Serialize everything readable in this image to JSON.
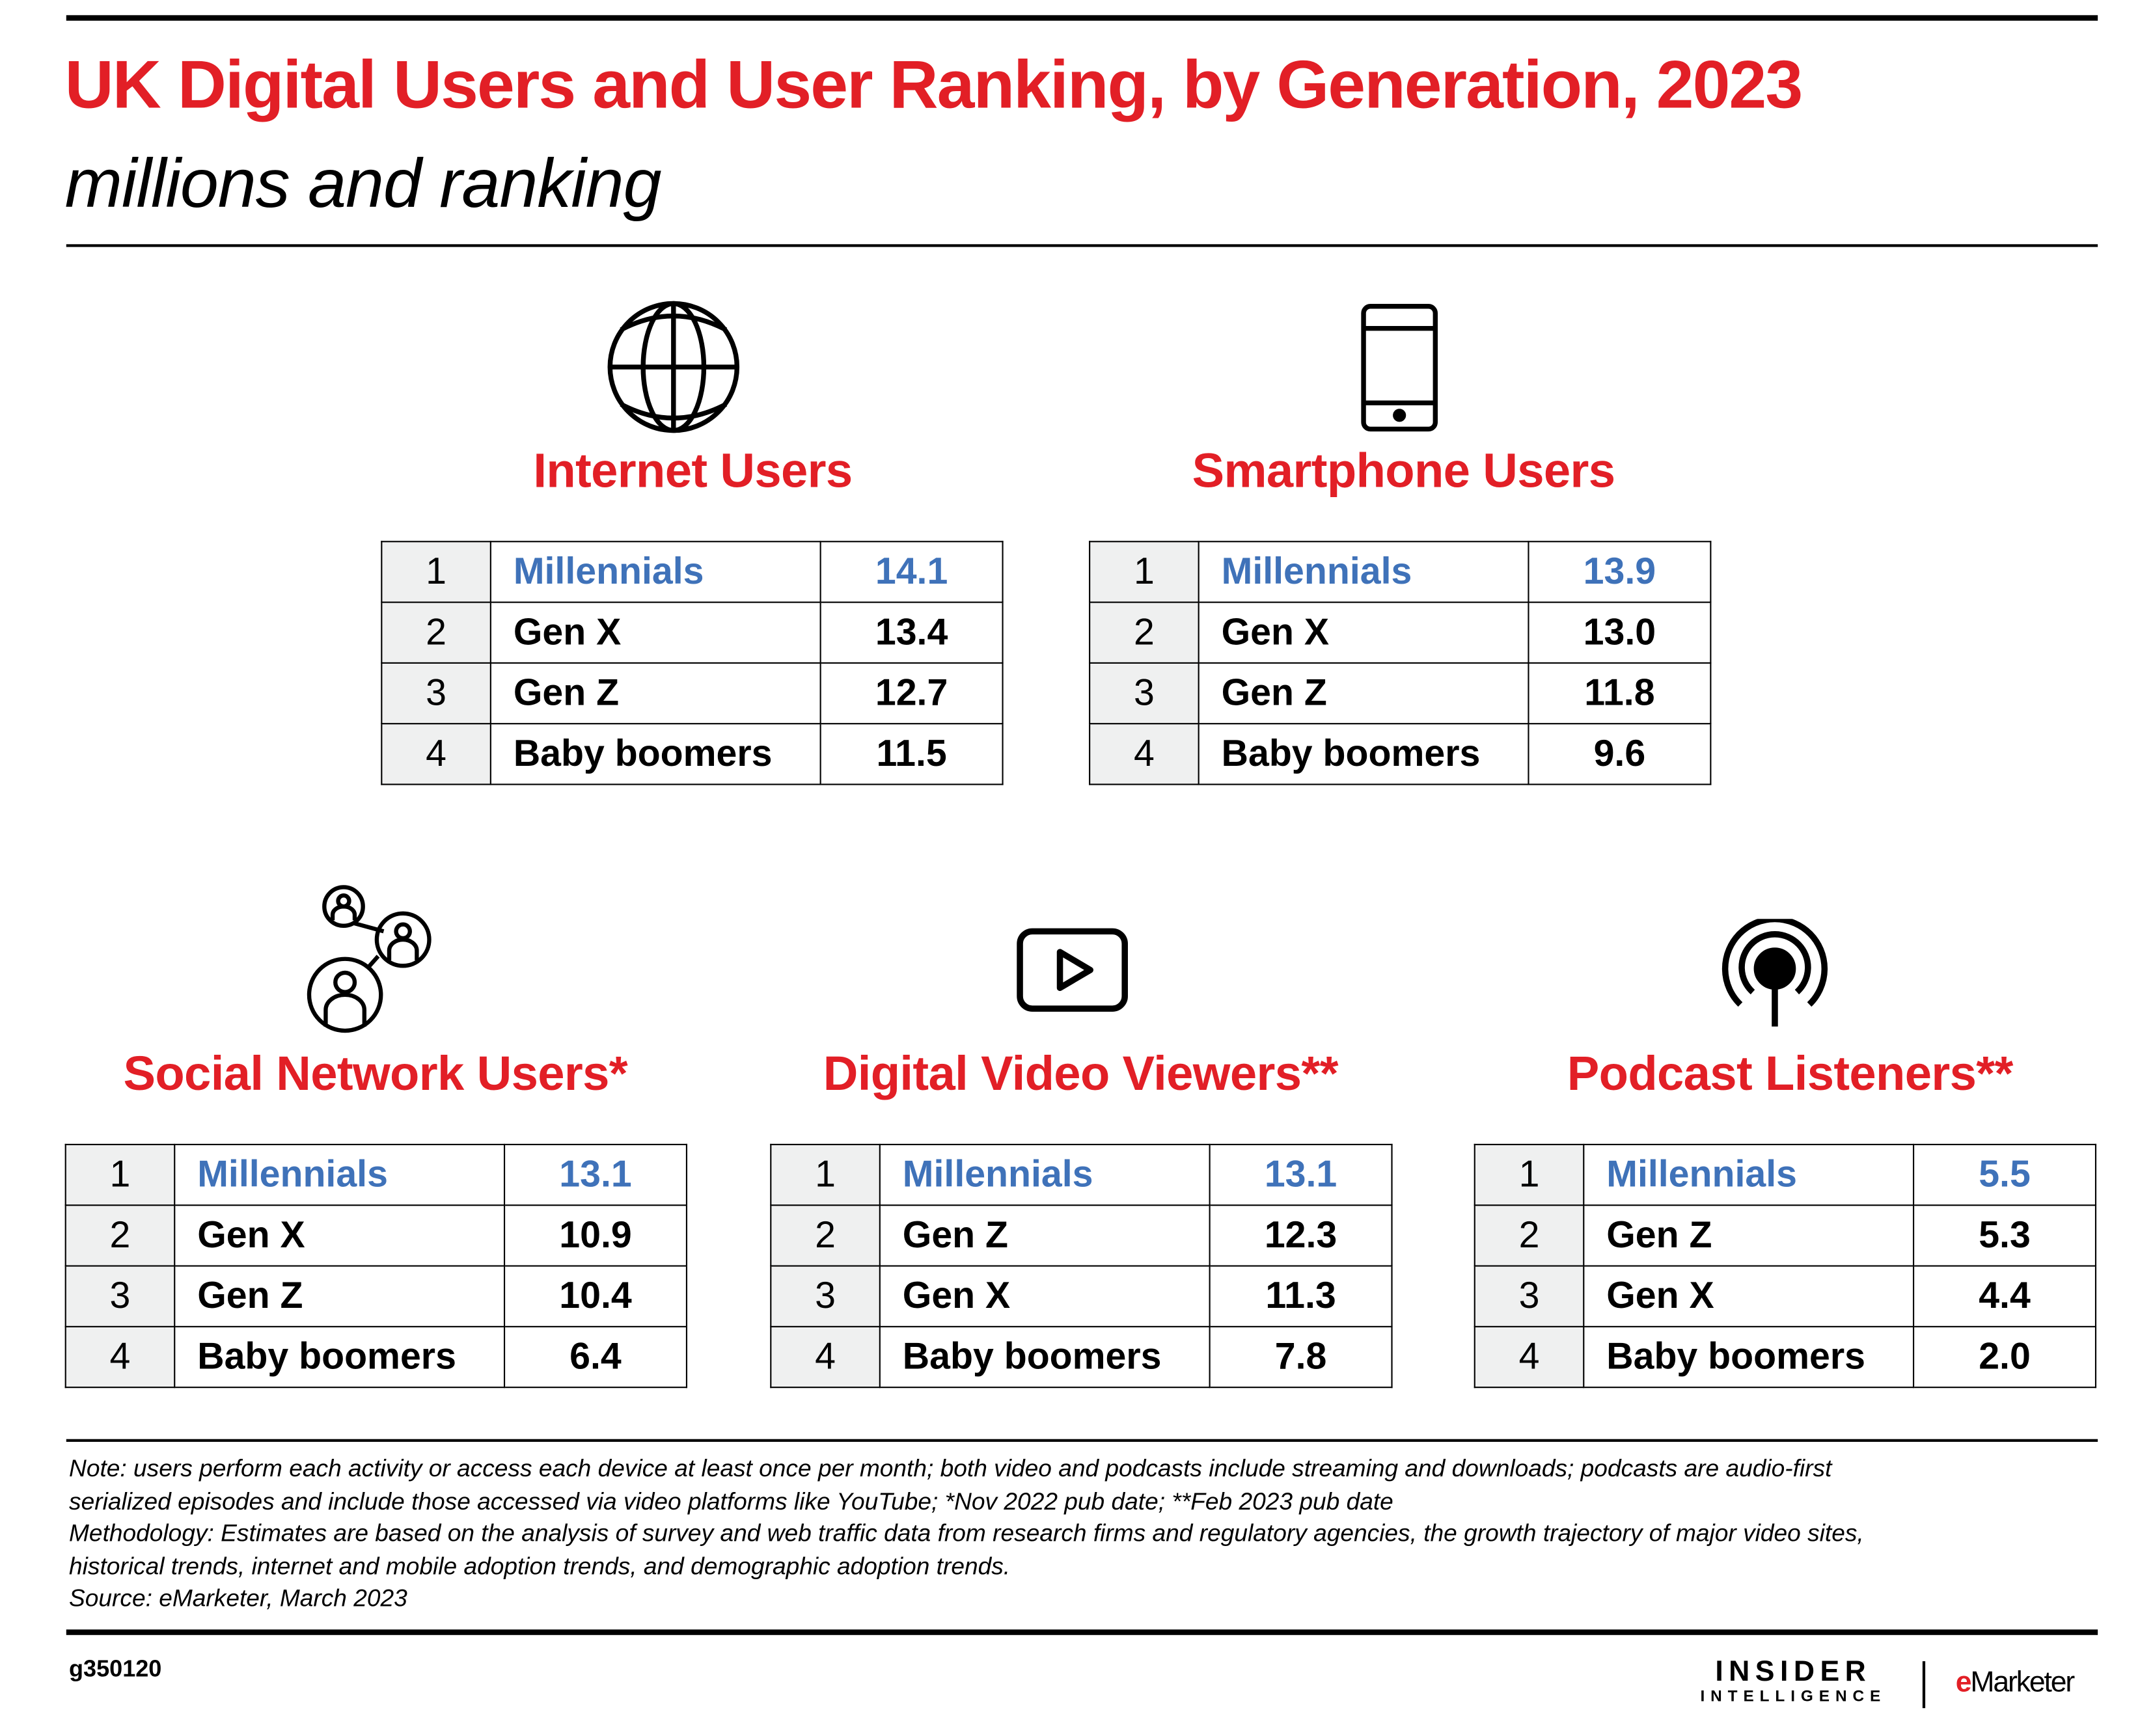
{
  "title": "UK Digital Users and User Ranking, by Generation, 2023",
  "subtitle": "millions and ranking",
  "colors": {
    "title": "#e21f26",
    "highlight": "#3f72b9",
    "rank_cell": "#eff0f0"
  },
  "chart_data": {
    "type": "table",
    "title": "UK Digital Users and User Ranking, by Generation, 2023",
    "unit": "millions and ranking",
    "panels": [
      {
        "heading": "Internet Users",
        "icon": "globe-icon",
        "rows": [
          {
            "rank": "1",
            "generation": "Millennials",
            "value": "14.1"
          },
          {
            "rank": "2",
            "generation": "Gen X",
            "value": "13.4"
          },
          {
            "rank": "3",
            "generation": "Gen Z",
            "value": "12.7"
          },
          {
            "rank": "4",
            "generation": "Baby boomers",
            "value": "11.5"
          }
        ]
      },
      {
        "heading": "Smartphone Users",
        "icon": "smartphone-icon",
        "rows": [
          {
            "rank": "1",
            "generation": "Millennials",
            "value": "13.9"
          },
          {
            "rank": "2",
            "generation": "Gen X",
            "value": "13.0"
          },
          {
            "rank": "3",
            "generation": "Gen Z",
            "value": "11.8"
          },
          {
            "rank": "4",
            "generation": "Baby boomers",
            "value": "9.6"
          }
        ]
      },
      {
        "heading": "Social Network Users*",
        "icon": "social-network-icon",
        "rows": [
          {
            "rank": "1",
            "generation": "Millennials",
            "value": "13.1"
          },
          {
            "rank": "2",
            "generation": "Gen X",
            "value": "10.9"
          },
          {
            "rank": "3",
            "generation": "Gen Z",
            "value": "10.4"
          },
          {
            "rank": "4",
            "generation": "Baby boomers",
            "value": "6.4"
          }
        ]
      },
      {
        "heading": "Digital Video Viewers**",
        "icon": "video-play-icon",
        "rows": [
          {
            "rank": "1",
            "generation": "Millennials",
            "value": "13.1"
          },
          {
            "rank": "2",
            "generation": "Gen Z",
            "value": "12.3"
          },
          {
            "rank": "3",
            "generation": "Gen X",
            "value": "11.3"
          },
          {
            "rank": "4",
            "generation": "Baby boomers",
            "value": "7.8"
          }
        ]
      },
      {
        "heading": "Podcast Listeners**",
        "icon": "podcast-icon",
        "rows": [
          {
            "rank": "1",
            "generation": "Millennials",
            "value": "5.5"
          },
          {
            "rank": "2",
            "generation": "Gen Z",
            "value": "5.3"
          },
          {
            "rank": "3",
            "generation": "Gen X",
            "value": "4.4"
          },
          {
            "rank": "4",
            "generation": "Baby boomers",
            "value": "2.0"
          }
        ]
      }
    ]
  },
  "notes": [
    "Note: users perform each activity or access each device at least once per month; both video and podcasts include streaming and downloads; podcasts are audio-first",
    "serialized episodes and include those accessed via video platforms like YouTube; *Nov 2022 pub date; **Feb 2023 pub date",
    "Methodology: Estimates are based on the analysis of survey and web traffic data from research firms and regulatory agencies, the growth trajectory of major video sites,",
    "historical trends, internet and mobile adoption trends, and demographic adoption trends.",
    "Source: eMarketer, March 2023"
  ],
  "footer": {
    "id": "g350120",
    "logo_insider": "INSIDER",
    "logo_intelligence": "INTELLIGENCE",
    "logo_emarketer_e": "e",
    "logo_emarketer_rest": "Marketer"
  }
}
